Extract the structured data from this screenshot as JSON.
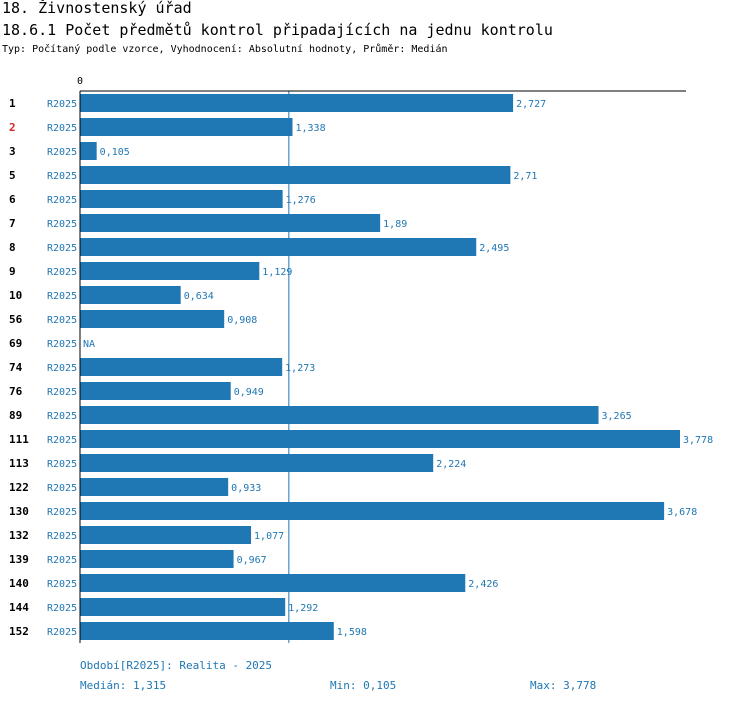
{
  "header": {
    "title": "18. Živnostenský úřad",
    "subtitle": "18.6.1 Počet předmětů kontrol připadajících na jednu kontrolu",
    "info": "Typ: Počítaný podle vzorce, Vyhodnocení: Absolutní hodnoty, Průměr: Medián"
  },
  "colors": {
    "bar": "#1f77b4",
    "highlight_label": "#d62728",
    "row_label": "#000000"
  },
  "chart_data": {
    "type": "bar",
    "orientation": "horizontal",
    "axis_zero_label": "0",
    "xlim": [
      0,
      3.778
    ],
    "reference_line": {
      "name": "Medián",
      "value": 1.315
    },
    "series_label": "R2025",
    "highlighted_category": "2",
    "categories": [
      "1",
      "2",
      "3",
      "5",
      "6",
      "7",
      "8",
      "9",
      "10",
      "56",
      "69",
      "74",
      "76",
      "89",
      "111",
      "113",
      "122",
      "130",
      "132",
      "139",
      "140",
      "144",
      "152"
    ],
    "values": [
      2.727,
      1.338,
      0.105,
      2.71,
      1.276,
      1.89,
      2.495,
      1.129,
      0.634,
      0.908,
      null,
      1.273,
      0.949,
      3.265,
      3.778,
      2.224,
      0.933,
      3.678,
      1.077,
      0.967,
      2.426,
      1.292,
      1.598
    ],
    "value_labels": [
      "2,727",
      "1,338",
      "0,105",
      "2,71",
      "1,276",
      "1,89",
      "2,495",
      "1,129",
      "0,634",
      "0,908",
      "NA",
      "1,273",
      "0,949",
      "3,265",
      "3,778",
      "2,224",
      "0,933",
      "3,678",
      "1,077",
      "0,967",
      "2,426",
      "1,292",
      "1,598"
    ]
  },
  "footer": {
    "period": "Období[R2025]: Realita - 2025",
    "median": "Medián: 1,315",
    "min": "Min: 0,105",
    "max": "Max: 3,778"
  }
}
